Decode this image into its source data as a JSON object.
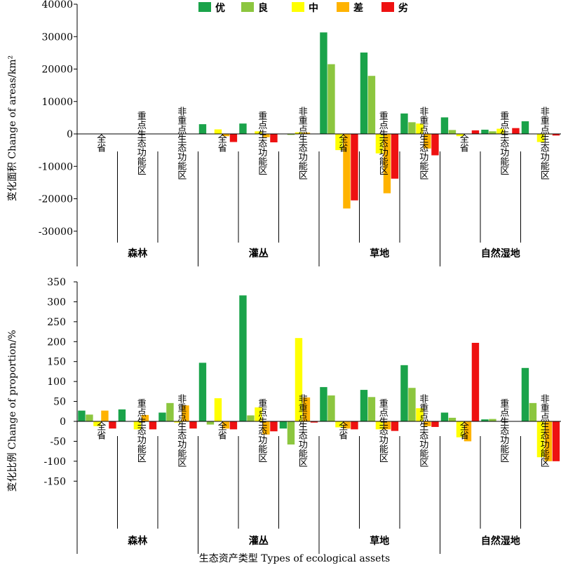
{
  "colors": {
    "excellent": "#1aa34a",
    "good": "#8cc63f",
    "medium": "#ffff00",
    "poor": "#ffb300",
    "bad": "#ee1111",
    "axis": "#000000"
  },
  "chart_data": [
    {
      "type": "bar",
      "ylabel": "变化面积 Change of areas/km²",
      "ylim": [
        -40000,
        40000
      ],
      "yticks": [
        "40000",
        "30000",
        "20000",
        "10000",
        "0",
        "-10000",
        "-20000",
        "-30000"
      ],
      "groups": [
        "森林",
        "灌丛",
        "草地",
        "自然湿地"
      ],
      "categories": [
        "全省",
        "重点生态功能区",
        "非重点生态功能区",
        "全省",
        "重点生态功能区",
        "非重点生态功能区",
        "全省",
        "重点生态功能区",
        "非重点生态功能区",
        "全省",
        "重点生态功能区",
        "非重点生态功能区"
      ],
      "legend": "top",
      "series": [
        {
          "name": "优",
          "color_key": "excellent",
          "values": [
            100,
            100,
            0,
            3000,
            3200,
            100,
            31300,
            25100,
            6300,
            5100,
            1300,
            3900
          ]
        },
        {
          "name": "良",
          "color_key": "good",
          "values": [
            0,
            0,
            0,
            100,
            0,
            -300,
            21500,
            17900,
            3600,
            1200,
            800,
            100
          ]
        },
        {
          "name": "中",
          "color_key": "medium",
          "values": [
            0,
            0,
            0,
            1400,
            800,
            500,
            -5000,
            -6000,
            3200,
            -700,
            1600,
            -2500
          ]
        },
        {
          "name": "差",
          "color_key": "poor",
          "values": [
            0,
            0,
            0,
            -700,
            -1000,
            400,
            -23000,
            -18300,
            -4500,
            0,
            0,
            -100
          ]
        },
        {
          "name": "劣",
          "color_key": "bad",
          "values": [
            0,
            0,
            0,
            -2500,
            -2600,
            0,
            -20500,
            -13800,
            -6600,
            1100,
            1800,
            -500
          ]
        }
      ]
    },
    {
      "type": "bar",
      "ylabel": "变化比例 Change of proportion/%",
      "xlabel": "生态资产类型 Types of ecological assets",
      "ylim": [
        -150,
        350
      ],
      "yticks": [
        "350",
        "300",
        "250",
        "200",
        "150",
        "100",
        "50",
        "0",
        "-50",
        "-100",
        "-150"
      ],
      "groups": [
        "森林",
        "灌丛",
        "草地",
        "自然湿地"
      ],
      "categories": [
        "全省",
        "重点生态功能区",
        "非重点生态功能区",
        "全省",
        "重点生态功能区",
        "非重点生态功能区",
        "全省",
        "重点生态功能区",
        "非重点生态功能区",
        "全省",
        "重点生态功能区",
        "非重点生态功能区"
      ],
      "series": [
        {
          "name": "优",
          "color_key": "excellent",
          "values": [
            27,
            30,
            22,
            147,
            316,
            -18,
            86,
            79,
            141,
            22,
            5,
            134
          ]
        },
        {
          "name": "良",
          "color_key": "good",
          "values": [
            17,
            0,
            46,
            -8,
            15,
            -58,
            65,
            61,
            84,
            9,
            6,
            46
          ]
        },
        {
          "name": "中",
          "color_key": "medium",
          "values": [
            -12,
            -20,
            -3,
            58,
            35,
            209,
            -15,
            -20,
            33,
            -40,
            0,
            -90
          ]
        },
        {
          "name": "差",
          "color_key": "poor",
          "values": [
            27,
            16,
            40,
            -18,
            -33,
            60,
            -18,
            -20,
            -12,
            -50,
            0,
            -100
          ]
        },
        {
          "name": "劣",
          "color_key": "bad",
          "values": [
            -18,
            -20,
            -18,
            -20,
            -25,
            -3,
            -20,
            -24,
            -14,
            197,
            0,
            -100
          ]
        }
      ]
    }
  ]
}
